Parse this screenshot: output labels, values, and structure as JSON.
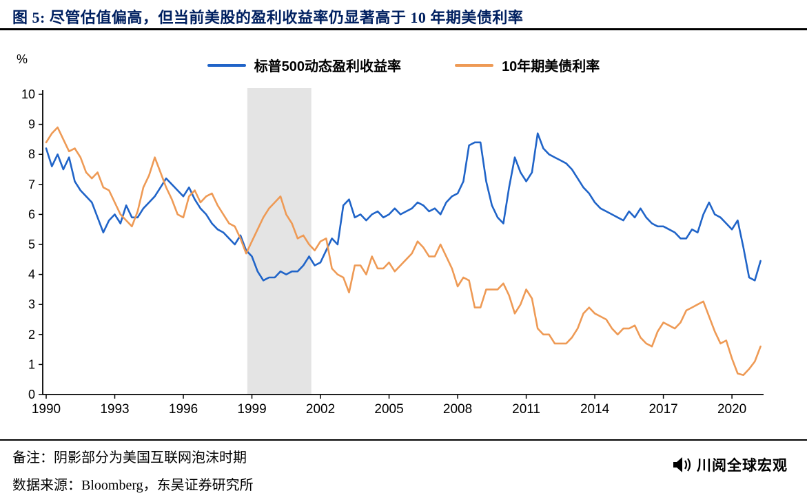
{
  "header": {
    "title": "图 5:  尽管估值偏高，但当前美股的盈利收益率仍显著高于 10 年期美债利率"
  },
  "chart_data": {
    "type": "line",
    "title": "",
    "xlabel": "",
    "ylabel": "%",
    "ylim": [
      0,
      10
    ],
    "yticks": [
      0,
      1,
      2,
      3,
      4,
      5,
      6,
      7,
      8,
      9,
      10
    ],
    "xticks": [
      1990,
      1993,
      1996,
      1999,
      2002,
      2005,
      2008,
      2011,
      2014,
      2017,
      2020
    ],
    "x_start": 1990,
    "x_step_years": 0.25,
    "grid": false,
    "legend_position": "top-center",
    "shaded_band": {
      "x0": 1998.8,
      "x1": 2001.6,
      "color": "#e4e4e4"
    },
    "series": [
      {
        "name": "标普500动态盈利收益率",
        "slug": "sp500-forward-earnings-yield",
        "color": "#2064c8",
        "values": [
          8.2,
          7.6,
          8.0,
          7.5,
          7.9,
          7.1,
          6.8,
          6.6,
          6.4,
          5.9,
          5.4,
          5.8,
          6.0,
          5.7,
          6.3,
          5.9,
          5.9,
          6.2,
          6.4,
          6.6,
          6.9,
          7.2,
          7.0,
          6.8,
          6.6,
          6.9,
          6.5,
          6.2,
          6.0,
          5.7,
          5.5,
          5.4,
          5.2,
          5.0,
          5.3,
          4.8,
          4.6,
          4.1,
          3.8,
          3.9,
          3.9,
          4.1,
          4.0,
          4.1,
          4.1,
          4.3,
          4.6,
          4.3,
          4.4,
          4.8,
          5.2,
          5.0,
          6.3,
          6.5,
          5.9,
          6.0,
          5.8,
          6.0,
          6.1,
          5.9,
          6.0,
          6.2,
          6.0,
          6.1,
          6.2,
          6.4,
          6.3,
          6.1,
          6.2,
          6.0,
          6.4,
          6.6,
          6.7,
          7.1,
          8.3,
          8.4,
          8.4,
          7.1,
          6.3,
          5.9,
          5.7,
          6.9,
          7.9,
          7.4,
          7.1,
          7.4,
          8.7,
          8.2,
          8.0,
          7.9,
          7.8,
          7.7,
          7.5,
          7.2,
          6.9,
          6.7,
          6.4,
          6.2,
          6.1,
          6.0,
          5.9,
          5.8,
          6.1,
          5.9,
          6.2,
          5.9,
          5.7,
          5.6,
          5.6,
          5.5,
          5.4,
          5.2,
          5.2,
          5.5,
          5.4,
          6.0,
          6.4,
          6.0,
          5.9,
          5.7,
          5.5,
          5.8,
          4.9,
          3.9,
          3.8,
          4.45
        ]
      },
      {
        "name": "10年期美债利率",
        "slug": "us-10y-treasury-yield",
        "color": "#ee9a55",
        "values": [
          8.4,
          8.7,
          8.9,
          8.5,
          8.1,
          8.2,
          7.9,
          7.4,
          7.2,
          7.4,
          6.9,
          6.8,
          6.4,
          6.0,
          5.8,
          5.6,
          6.1,
          6.9,
          7.3,
          7.9,
          7.4,
          6.9,
          6.5,
          6.0,
          5.9,
          6.6,
          6.8,
          6.4,
          6.6,
          6.7,
          6.3,
          6.0,
          5.7,
          5.6,
          5.2,
          4.7,
          5.1,
          5.5,
          5.9,
          6.2,
          6.4,
          6.6,
          6.0,
          5.7,
          5.2,
          5.3,
          5.0,
          4.8,
          5.1,
          5.2,
          4.2,
          4.0,
          3.9,
          3.4,
          4.3,
          4.3,
          4.0,
          4.6,
          4.2,
          4.2,
          4.4,
          4.1,
          4.3,
          4.5,
          4.7,
          5.1,
          4.9,
          4.6,
          4.6,
          5.0,
          4.6,
          4.2,
          3.6,
          3.9,
          3.8,
          2.9,
          2.9,
          3.5,
          3.5,
          3.5,
          3.7,
          3.3,
          2.7,
          3.0,
          3.5,
          3.2,
          2.2,
          2.0,
          2.0,
          1.7,
          1.7,
          1.7,
          1.9,
          2.2,
          2.7,
          2.9,
          2.7,
          2.6,
          2.5,
          2.2,
          2.0,
          2.2,
          2.2,
          2.3,
          1.9,
          1.7,
          1.6,
          2.1,
          2.4,
          2.3,
          2.2,
          2.4,
          2.8,
          2.9,
          3.0,
          3.1,
          2.6,
          2.1,
          1.7,
          1.8,
          1.2,
          0.7,
          0.65,
          0.85,
          1.1,
          1.6
        ]
      }
    ]
  },
  "footer": {
    "note": "备注：阴影部分为美国互联网泡沫时期",
    "source": "数据来源：Bloomberg，东吴证券研究所",
    "logo_text": "川阅全球宏观"
  },
  "colors": {
    "title_navy": "#002060",
    "series_blue": "#2064c8",
    "series_orange": "#ee9a55",
    "band_gray": "#e4e4e4",
    "axis_black": "#000000"
  }
}
